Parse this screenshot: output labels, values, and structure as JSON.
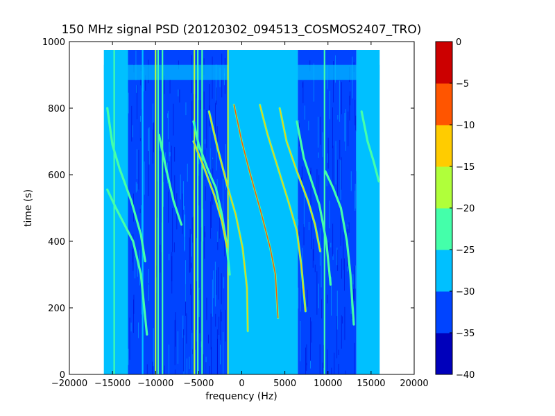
{
  "chart_data": {
    "type": "heatmap",
    "title": "150 MHz signal PSD (20120302_094513_COSMOS2407_TRO)",
    "xlabel": "frequency (Hz)",
    "ylabel": "time (s)",
    "xlim": [
      -20000,
      20000
    ],
    "ylim": [
      0,
      1000
    ],
    "xticks": [
      -20000,
      -15000,
      -10000,
      -5000,
      0,
      5000,
      10000,
      15000,
      20000
    ],
    "xtick_labels": [
      "−20000",
      "−15000",
      "−10000",
      "−5000",
      "0",
      "5000",
      "10000",
      "15000",
      "20000"
    ],
    "yticks": [
      0,
      200,
      400,
      600,
      800,
      1000
    ],
    "ytick_labels": [
      "0",
      "200",
      "400",
      "600",
      "800",
      "1000"
    ],
    "data_extent": {
      "freq_range": [
        -16000,
        16000
      ],
      "time_range": [
        0,
        975
      ]
    },
    "colorbar": {
      "range": [
        -40,
        0
      ],
      "levels": [
        -40,
        -35,
        -30,
        -25,
        -20,
        -15,
        -10,
        -5,
        0
      ],
      "tick_labels": [
        "−40",
        "−35",
        "−30",
        "−25",
        "−20",
        "−15",
        "−10",
        "−5",
        "0"
      ],
      "colors": [
        "#0000bb",
        "#0044ff",
        "#00c0ff",
        "#44ffaa",
        "#b0ff3a",
        "#ffcc00",
        "#ff5500",
        "#cc0000"
      ]
    },
    "background_bands": [
      {
        "freq": [
          -16000,
          -13200
        ],
        "level": -30
      },
      {
        "freq": [
          -13200,
          -1500
        ],
        "level": -33
      },
      {
        "freq": [
          -1500,
          6500
        ],
        "level": -30
      },
      {
        "freq": [
          6500,
          13300
        ],
        "level": -33
      },
      {
        "freq": [
          13300,
          16000
        ],
        "level": -27
      }
    ],
    "horizontal_bands": [
      {
        "time": [
          885,
          930
        ],
        "level": -28
      }
    ],
    "vertical_lines": [
      {
        "freq": -14800,
        "level": -22
      },
      {
        "freq": -11500,
        "level": -27
      },
      {
        "freq": -10000,
        "level": -17
      },
      {
        "freq": -9700,
        "level": -22
      },
      {
        "freq": -9200,
        "level": -22
      },
      {
        "freq": -5500,
        "level": -17
      },
      {
        "freq": -5100,
        "level": -22
      },
      {
        "freq": -4600,
        "level": -22
      },
      {
        "freq": -1600,
        "level": -17
      },
      {
        "freq": 9600,
        "level": -22
      }
    ],
    "tracks": [
      {
        "level": -22,
        "points": [
          [
            -15600,
            800
          ],
          [
            -15000,
            690
          ],
          [
            -14200,
            620
          ],
          [
            -12800,
            520
          ],
          [
            -11700,
            420
          ],
          [
            -11200,
            340
          ]
        ]
      },
      {
        "level": -22,
        "points": [
          [
            -15600,
            555
          ],
          [
            -14600,
            500
          ],
          [
            -13800,
            460
          ],
          [
            -12600,
            400
          ],
          [
            -11700,
            300
          ],
          [
            -11000,
            120
          ]
        ]
      },
      {
        "level": -22,
        "points": [
          [
            -9600,
            720
          ],
          [
            -8800,
            620
          ],
          [
            -7900,
            520
          ],
          [
            -7000,
            450
          ]
        ]
      },
      {
        "level": -22,
        "points": [
          [
            -5600,
            760
          ],
          [
            -5000,
            690
          ],
          [
            -4000,
            620
          ],
          [
            -3000,
            560
          ],
          [
            -2300,
            480
          ],
          [
            -1800,
            400
          ],
          [
            -1400,
            300
          ]
        ]
      },
      {
        "level": -12,
        "points": [
          [
            -5600,
            700
          ],
          [
            -4500,
            630
          ],
          [
            -3200,
            540
          ],
          [
            -2300,
            460
          ],
          [
            -1700,
            380
          ]
        ]
      },
      {
        "level": -12,
        "points": [
          [
            -3800,
            790
          ],
          [
            -2800,
            680
          ],
          [
            -1600,
            560
          ],
          [
            -700,
            480
          ],
          [
            100,
            380
          ],
          [
            600,
            260
          ],
          [
            700,
            130
          ]
        ]
      },
      {
        "level": -7,
        "points": [
          [
            -900,
            810
          ],
          [
            0,
            700
          ],
          [
            900,
            610
          ],
          [
            2300,
            480
          ],
          [
            3300,
            380
          ],
          [
            3900,
            300
          ],
          [
            4200,
            170
          ]
        ]
      },
      {
        "level": -12,
        "points": [
          [
            2100,
            810
          ],
          [
            3000,
            720
          ],
          [
            4200,
            620
          ],
          [
            5400,
            520
          ],
          [
            6400,
            430
          ],
          [
            6900,
            330
          ],
          [
            7400,
            190
          ]
        ]
      },
      {
        "level": -12,
        "points": [
          [
            4400,
            800
          ],
          [
            5200,
            700
          ],
          [
            6400,
            610
          ],
          [
            7700,
            520
          ],
          [
            8500,
            450
          ],
          [
            9100,
            370
          ]
        ]
      },
      {
        "level": -22,
        "points": [
          [
            6400,
            760
          ],
          [
            7200,
            650
          ],
          [
            8100,
            580
          ],
          [
            9000,
            510
          ],
          [
            9800,
            400
          ],
          [
            10300,
            270
          ]
        ]
      },
      {
        "level": -22,
        "points": [
          [
            9700,
            610
          ],
          [
            10600,
            560
          ],
          [
            11500,
            500
          ],
          [
            12200,
            400
          ],
          [
            12600,
            300
          ],
          [
            13000,
            150
          ]
        ]
      },
      {
        "level": -22,
        "points": [
          [
            13900,
            790
          ],
          [
            14600,
            700
          ],
          [
            15300,
            640
          ],
          [
            15900,
            580
          ]
        ]
      }
    ]
  }
}
